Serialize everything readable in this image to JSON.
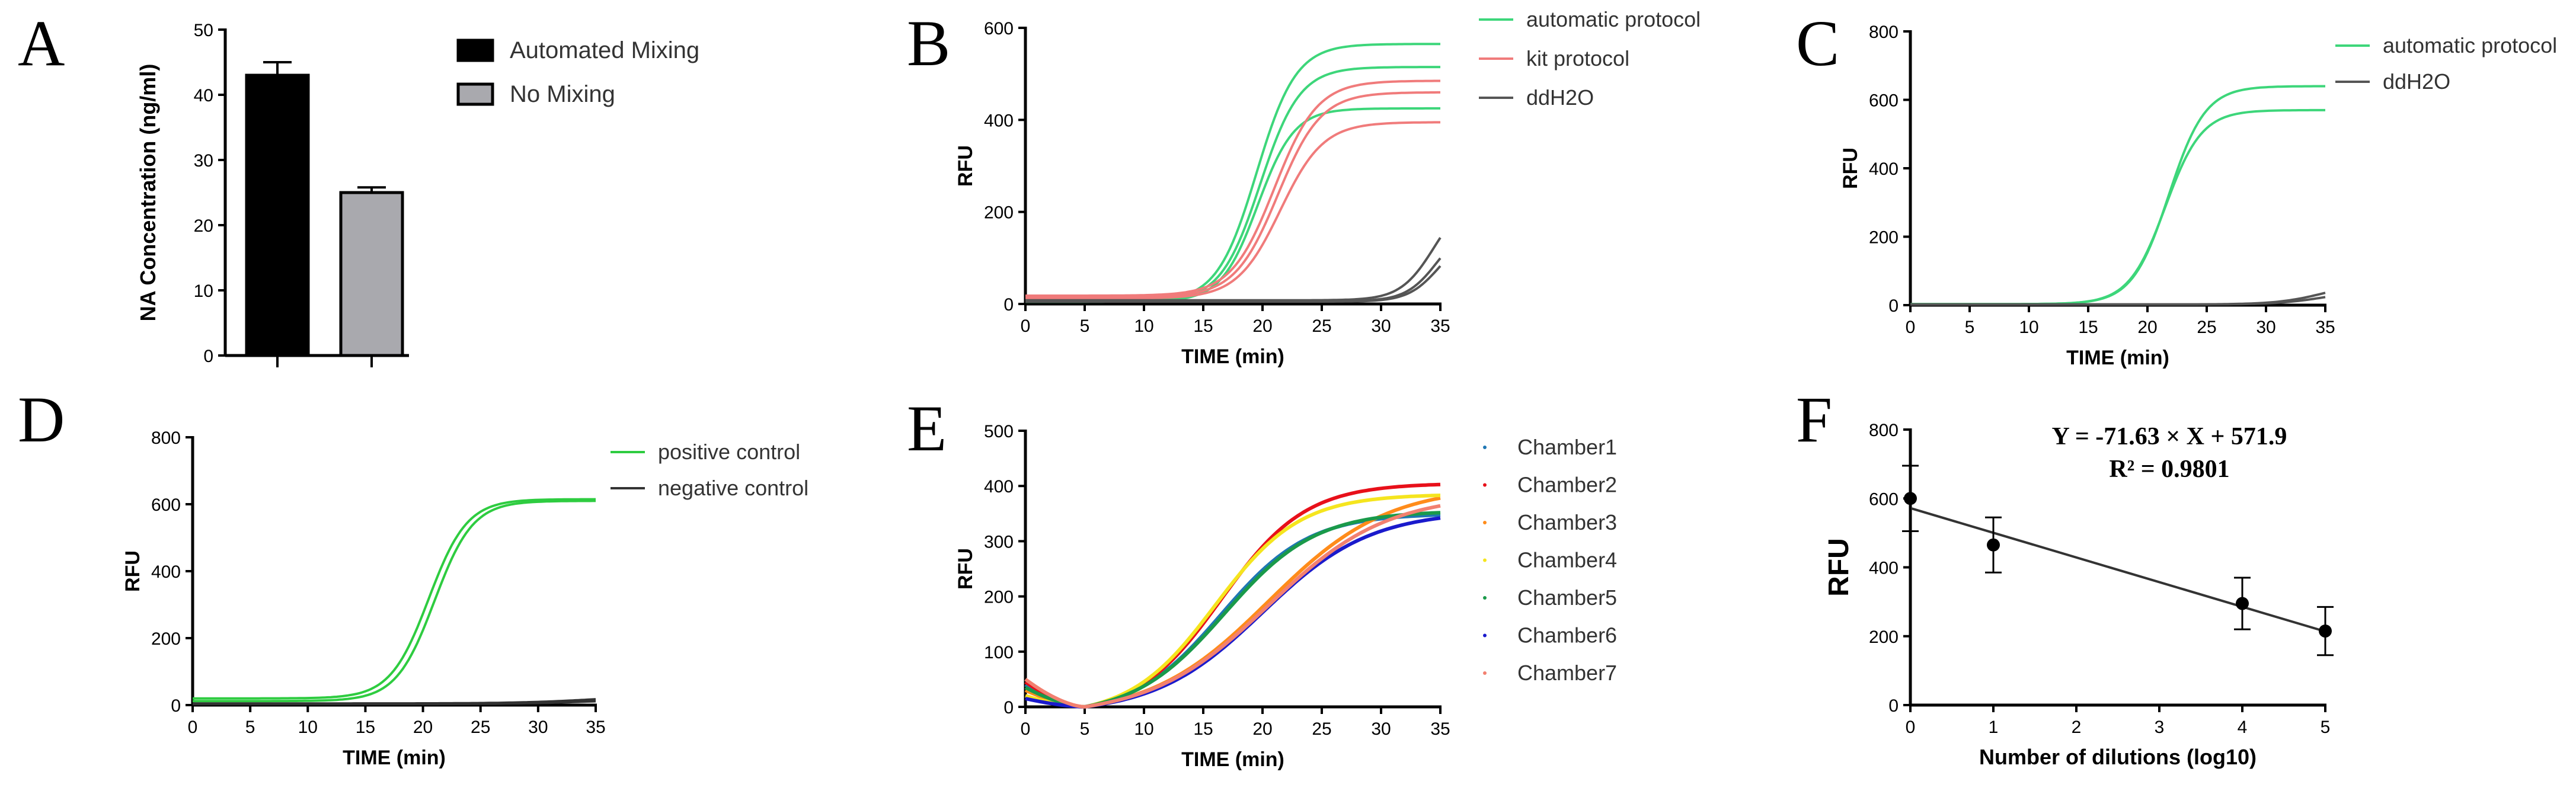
{
  "chart_data": [
    {
      "panel": "A",
      "type": "bar",
      "ylabel": "NA Concentration (ng/ml)",
      "ylim": [
        0,
        50
      ],
      "yticks": [
        0,
        10,
        20,
        30,
        40,
        50
      ],
      "categories": [
        "Automated Mixing",
        "No Mixing"
      ],
      "values": [
        43,
        25
      ],
      "errors": [
        2,
        0.8
      ],
      "colors": [
        "#000000",
        "#a9a9ae"
      ],
      "legend": [
        "Automated Mixing",
        "No Mixing"
      ],
      "legend_position": "right"
    },
    {
      "panel": "B",
      "type": "line",
      "xlabel": "TIME (min)",
      "ylabel": "RFU",
      "xlim": [
        0,
        35
      ],
      "ylim": [
        0,
        600
      ],
      "xticks": [
        0,
        5,
        10,
        15,
        20,
        25,
        30,
        35
      ],
      "yticks": [
        0,
        200,
        400,
        600
      ],
      "legend": [
        "automatic protocol",
        "kit protocol",
        "ddH2O"
      ],
      "legend_position": "top-right",
      "colors": {
        "automatic protocol": "#3dd67a",
        "kit protocol": "#f07b7b",
        "ddH2O": "#555555"
      },
      "series": [
        {
          "group": "automatic protocol",
          "baseline": 5,
          "plateau": 565,
          "mid": 19.5,
          "k": 0.6
        },
        {
          "group": "automatic protocol",
          "baseline": 5,
          "plateau": 515,
          "mid": 19.8,
          "k": 0.6
        },
        {
          "group": "automatic protocol",
          "baseline": 5,
          "plateau": 425,
          "mid": 19.6,
          "k": 0.65
        },
        {
          "group": "kit protocol",
          "baseline": 18,
          "plateau": 485,
          "mid": 21.0,
          "k": 0.55
        },
        {
          "group": "kit protocol",
          "baseline": 15,
          "plateau": 460,
          "mid": 21.3,
          "k": 0.55
        },
        {
          "group": "kit protocol",
          "baseline": 12,
          "plateau": 395,
          "mid": 21.5,
          "k": 0.55
        },
        {
          "group": "ddH2O",
          "baseline": 8,
          "plateau": 240,
          "mid": 34.5,
          "k": 0.7
        },
        {
          "group": "ddH2O",
          "baseline": 6,
          "plateau": 180,
          "mid": 34.8,
          "k": 0.75
        },
        {
          "group": "ddH2O",
          "baseline": 5,
          "plateau": 160,
          "mid": 35.0,
          "k": 0.75
        }
      ]
    },
    {
      "panel": "C",
      "type": "line",
      "xlabel": "TIME (min)",
      "ylabel": "RFU",
      "xlim": [
        0,
        35
      ],
      "ylim": [
        0,
        800
      ],
      "xticks": [
        0,
        5,
        10,
        15,
        20,
        25,
        30,
        35
      ],
      "yticks": [
        0,
        200,
        400,
        600,
        800
      ],
      "legend": [
        "automatic protocol",
        "ddH2O"
      ],
      "legend_position": "top-right",
      "colors": {
        "automatic protocol": "#3dd67a",
        "ddH2O": "#555555"
      },
      "series": [
        {
          "group": "automatic protocol",
          "baseline": 3,
          "plateau": 640,
          "mid": 21.8,
          "k": 0.65
        },
        {
          "group": "automatic protocol",
          "baseline": 3,
          "plateau": 570,
          "mid": 21.5,
          "k": 0.65
        },
        {
          "group": "ddH2O",
          "baseline": 2,
          "plateau": 70,
          "mid": 35.0,
          "k": 0.5
        },
        {
          "group": "ddH2O",
          "baseline": 2,
          "plateau": 45,
          "mid": 35.0,
          "k": 0.5
        }
      ]
    },
    {
      "panel": "D",
      "type": "line",
      "xlabel": "TIME (min)",
      "ylabel": "RFU",
      "xlim": [
        0,
        35
      ],
      "ylim": [
        0,
        800
      ],
      "xticks": [
        0,
        5,
        10,
        15,
        20,
        25,
        30,
        35
      ],
      "yticks": [
        0,
        200,
        400,
        600,
        800
      ],
      "legend": [
        "positive control",
        "negative control"
      ],
      "legend_position": "top-right",
      "colors": {
        "positive control": "#2ecc40",
        "negative control": "#333333"
      },
      "series": [
        {
          "group": "positive control",
          "baseline": 20,
          "plateau": 615,
          "mid": 20.5,
          "k": 0.6
        },
        {
          "group": "positive control",
          "baseline": 12,
          "plateau": 610,
          "mid": 21.0,
          "k": 0.6
        },
        {
          "group": "negative control",
          "baseline": 5,
          "plateau": 30,
          "mid": 35.0,
          "k": 0.3
        },
        {
          "group": "negative control",
          "baseline": 3,
          "plateau": 20,
          "mid": 35.0,
          "k": 0.3
        }
      ]
    },
    {
      "panel": "E",
      "type": "line",
      "xlabel": "TIME (min)",
      "ylabel": "RFU",
      "xlim": [
        0,
        35
      ],
      "ylim": [
        0,
        500
      ],
      "xticks": [
        0,
        5,
        10,
        15,
        20,
        25,
        30,
        35
      ],
      "yticks": [
        0,
        100,
        200,
        300,
        400,
        500
      ],
      "legend": [
        "Chamber1",
        "Chamber2",
        "Chamber3",
        "Chamber4",
        "Chamber5",
        "Chamber6",
        "Chamber7"
      ],
      "legend_position": "right",
      "series": [
        {
          "name": "Chamber1",
          "color": "#1f77b4",
          "start": 40,
          "plateau": 350,
          "mid": 16.5,
          "k": 0.27
        },
        {
          "name": "Chamber2",
          "color": "#e8101a",
          "start": 45,
          "plateau": 405,
          "mid": 16.5,
          "k": 0.28
        },
        {
          "name": "Chamber3",
          "color": "#ff8c1a",
          "start": 30,
          "plateau": 400,
          "mid": 20.5,
          "k": 0.2
        },
        {
          "name": "Chamber4",
          "color": "#f5e51e",
          "start": 20,
          "plateau": 385,
          "mid": 16.0,
          "k": 0.28
        },
        {
          "name": "Chamber5",
          "color": "#1a9a4a",
          "start": 35,
          "plateau": 355,
          "mid": 16.8,
          "k": 0.26
        },
        {
          "name": "Chamber6",
          "color": "#1a1acc",
          "start": 15,
          "plateau": 355,
          "mid": 20.0,
          "k": 0.22
        },
        {
          "name": "Chamber7",
          "color": "#f28070",
          "start": 50,
          "plateau": 385,
          "mid": 20.5,
          "k": 0.2
        }
      ]
    },
    {
      "panel": "F",
      "type": "scatter",
      "xlabel": "Number of dilutions (log10)",
      "ylabel": "RFU",
      "xlim": [
        0,
        5
      ],
      "ylim": [
        0,
        800
      ],
      "xticks": [
        0,
        1,
        2,
        3,
        4,
        5
      ],
      "yticks": [
        0,
        200,
        400,
        600,
        800
      ],
      "x": [
        0,
        1,
        4,
        5
      ],
      "y": [
        600,
        465,
        295,
        215
      ],
      "errors": [
        95,
        80,
        75,
        70
      ],
      "fit": {
        "slope": -71.63,
        "intercept": 571.9
      },
      "equation": "Y = -71.63 × X + 571.9",
      "r2": "R² = 0.9801"
    }
  ]
}
